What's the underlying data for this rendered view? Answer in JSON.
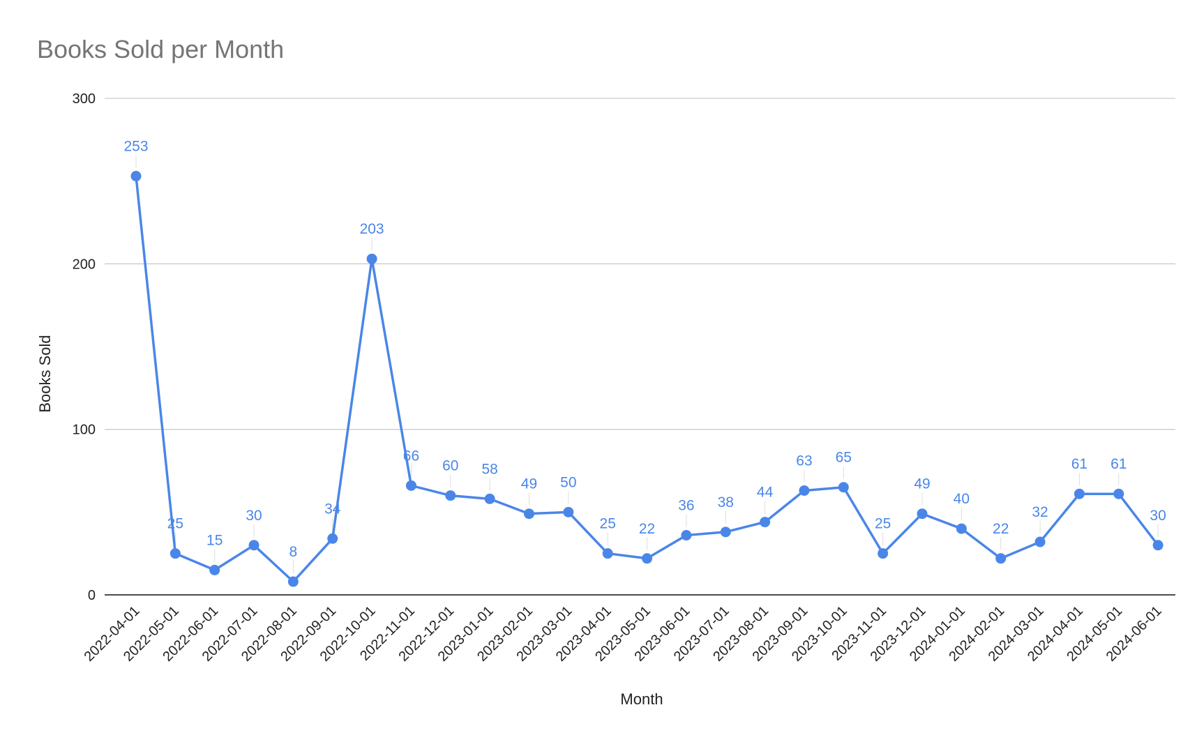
{
  "chart_data": {
    "type": "line",
    "title": "Books Sold per Month",
    "xlabel": "Month",
    "ylabel": "Books Sold",
    "ylim": [
      0,
      300
    ],
    "yticks": [
      "0",
      "100",
      "200",
      "300"
    ],
    "grid": true,
    "legend": "none",
    "color": "#4a86e8",
    "categories": [
      "2022-04-01",
      "2022-05-01",
      "2022-06-01",
      "2022-07-01",
      "2022-08-01",
      "2022-09-01",
      "2022-10-01",
      "2022-11-01",
      "2022-12-01",
      "2023-01-01",
      "2023-02-01",
      "2023-03-01",
      "2023-04-01",
      "2023-05-01",
      "2023-06-01",
      "2023-07-01",
      "2023-08-01",
      "2023-09-01",
      "2023-10-01",
      "2023-11-01",
      "2023-12-01",
      "2024-01-01",
      "2024-02-01",
      "2024-03-01",
      "2024-04-01",
      "2024-05-01",
      "2024-06-01"
    ],
    "series": [
      {
        "values": [
          253,
          25,
          15,
          30,
          8,
          34,
          203,
          66,
          60,
          58,
          49,
          50,
          25,
          22,
          36,
          38,
          44,
          63,
          65,
          25,
          49,
          40,
          22,
          32,
          61,
          61,
          30
        ]
      }
    ]
  }
}
